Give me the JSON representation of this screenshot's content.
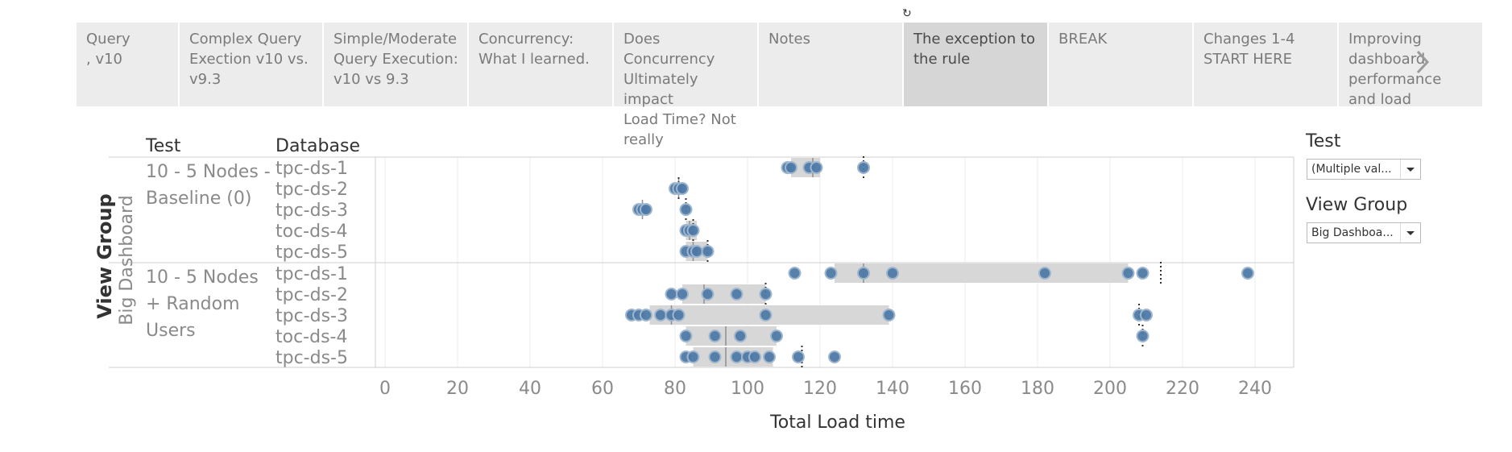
{
  "reset_icon": "reset-icon",
  "tabs": [
    {
      "label": "Query\n, v10",
      "active": false
    },
    {
      "label": "Complex Query\nExection v10 vs.\nv9.3",
      "active": false
    },
    {
      "label": "Simple/Moderate\nQuery Execution:\nv10 vs 9.3",
      "active": false
    },
    {
      "label": "Concurrency:\nWhat I learned.",
      "active": false
    },
    {
      "label": "Does Concurrency\nUltimately impact\nLoad Time? Not\nreally",
      "active": false
    },
    {
      "label": "Notes",
      "active": false
    },
    {
      "label": "The exception to\nthe rule",
      "active": true
    },
    {
      "label": "BREAK",
      "active": false
    },
    {
      "label": "Changes 1-4\nSTART HERE",
      "active": false
    },
    {
      "label": "Improving\ndashboard\nperformance\nand load",
      "active": false
    }
  ],
  "headers": {
    "test": "Test",
    "database": "Database"
  },
  "view_group_label": "View Group",
  "view_group_value": "Big Dashboard",
  "filters": [
    {
      "title": "Test",
      "value": "(Multiple val..."
    },
    {
      "title": "View Group",
      "value": "Big Dashboa..."
    }
  ],
  "colors": {
    "dot": "#4e79a7",
    "band": "#d7d7d7",
    "grid": "#eeeeee",
    "axis_text": "#8a8a8a"
  },
  "chart_data": {
    "type": "scatter",
    "title": "",
    "xlabel": "Total Load time",
    "ylabel": "",
    "xlim": [
      0,
      250
    ],
    "ticks": [
      0,
      20,
      40,
      60,
      80,
      100,
      120,
      140,
      160,
      180,
      200,
      220,
      240
    ],
    "groups": [
      {
        "test": "10 - 5 Nodes -\nBaseline (0)",
        "rows": [
          {
            "db": "tpc-ds-1",
            "points": [
              111,
              112,
              117,
              119,
              132
            ],
            "band": [
              112,
              120
            ],
            "median": 118,
            "ref": 132
          },
          {
            "db": "tpc-ds-2",
            "points": [
              80,
              81,
              82
            ],
            "band": null,
            "median": 81,
            "ref": 81
          },
          {
            "db": "tpc-ds-3",
            "points": [
              70,
              71,
              72,
              83
            ],
            "band": null,
            "median": 71,
            "ref": 83
          },
          {
            "db": "toc-ds-4",
            "points": [
              83,
              84,
              85
            ],
            "band": [
              83,
              86
            ],
            "median": 84,
            "ref": 85
          },
          {
            "db": "tpc-ds-5",
            "points": [
              83,
              85,
              86,
              89
            ],
            "band": [
              83,
              89
            ],
            "median": 85,
            "ref": 89
          }
        ]
      },
      {
        "test": "10 - 5 Nodes\n+ Random\nUsers",
        "rows": [
          {
            "db": "tpc-ds-1",
            "points": [
              113,
              123,
              132,
              140,
              182,
              205,
              209,
              238
            ],
            "band": [
              124,
              205
            ],
            "median": 132,
            "ref": 214
          },
          {
            "db": "tpc-ds-2",
            "points": [
              79,
              82,
              89,
              97,
              105
            ],
            "band": [
              82,
              105
            ],
            "median": 88,
            "ref": 105
          },
          {
            "db": "tpc-ds-3",
            "points": [
              68,
              70,
              72,
              76,
              79,
              81,
              105,
              139,
              208,
              210
            ],
            "band": [
              73,
              139
            ],
            "median": 79,
            "ref": 208
          },
          {
            "db": "toc-ds-4",
            "points": [
              83,
              91,
              98,
              108,
              209
            ],
            "band": [
              83,
              108
            ],
            "median": 94,
            "ref": 209
          },
          {
            "db": "tpc-ds-5",
            "points": [
              83,
              85,
              91,
              97,
              100,
              102,
              106,
              114,
              124
            ],
            "band": [
              85,
              107
            ],
            "median": 94,
            "ref": 115
          }
        ]
      }
    ]
  }
}
